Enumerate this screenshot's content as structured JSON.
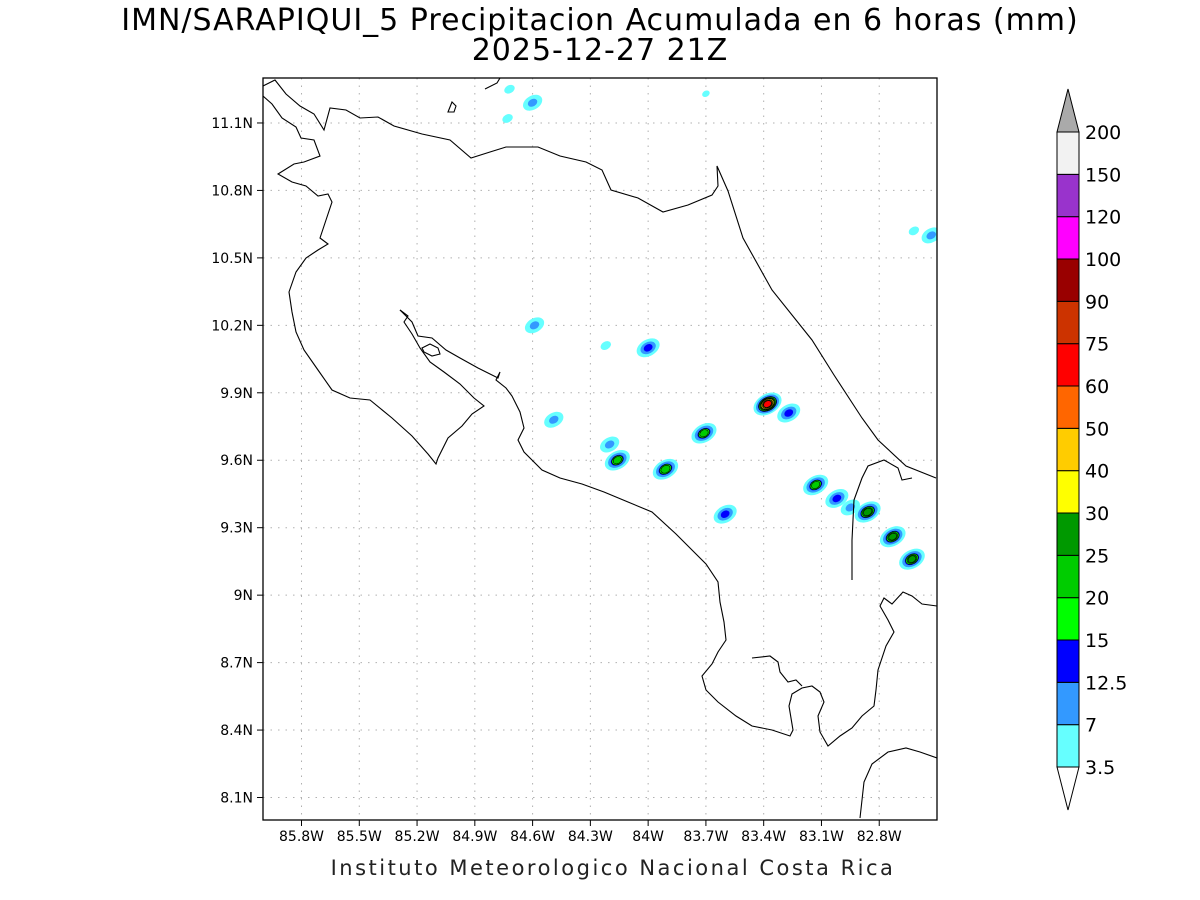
{
  "title": "IMN/SARAPIQUI_5 Precipitacion Acumulada en 6 horas (mm)",
  "subtitle": "2025-12-27 21Z",
  "footer": "Instituto Meteorologico Nacional Costa Rica",
  "map": {
    "lon_range": [
      -86.0,
      -82.5
    ],
    "lat_range": [
      8.0,
      11.3
    ],
    "grid": true,
    "lat_ticks": [
      {
        "value": 11.1,
        "label": "11.1N"
      },
      {
        "value": 10.8,
        "label": "10.8N"
      },
      {
        "value": 10.5,
        "label": "10.5N"
      },
      {
        "value": 10.2,
        "label": "10.2N"
      },
      {
        "value": 9.9,
        "label": "9.9N"
      },
      {
        "value": 9.6,
        "label": "9.6N"
      },
      {
        "value": 9.3,
        "label": "9.3N"
      },
      {
        "value": 9.0,
        "label": "9N"
      },
      {
        "value": 8.7,
        "label": "8.7N"
      },
      {
        "value": 8.4,
        "label": "8.4N"
      },
      {
        "value": 8.1,
        "label": "8.1N"
      }
    ],
    "lon_ticks": [
      {
        "value": -85.8,
        "label": "85.8W"
      },
      {
        "value": -85.5,
        "label": "85.5W"
      },
      {
        "value": -85.2,
        "label": "85.2W"
      },
      {
        "value": -84.9,
        "label": "84.9W"
      },
      {
        "value": -84.6,
        "label": "84.6W"
      },
      {
        "value": -84.3,
        "label": "84.3W"
      },
      {
        "value": -84.0,
        "label": "84W"
      },
      {
        "value": -83.7,
        "label": "83.7W"
      },
      {
        "value": -83.4,
        "label": "83.4W"
      },
      {
        "value": -83.1,
        "label": "83.1W"
      },
      {
        "value": -82.8,
        "label": "82.8W"
      }
    ]
  },
  "legend": {
    "levels": [
      "3.5",
      "7",
      "12.5",
      "15",
      "20",
      "25",
      "30",
      "40",
      "50",
      "60",
      "75",
      "90",
      "100",
      "120",
      "150",
      "200"
    ],
    "colors": [
      "#66ffff",
      "#3399ff",
      "#0000ff",
      "#00ff00",
      "#00cc00",
      "#009900",
      "#ffff00",
      "#ffcc00",
      "#ff6600",
      "#ff0000",
      "#cc3300",
      "#990000",
      "#ff00ff",
      "#9933cc",
      "#f2f2f2"
    ],
    "below_color": "#ffffff",
    "above_color": "#aaaaaa"
  },
  "precip_cells": [
    {
      "lon": -84.72,
      "lat": 11.25,
      "max_mm": 4
    },
    {
      "lon": -84.6,
      "lat": 11.19,
      "max_mm": 8
    },
    {
      "lon": -84.73,
      "lat": 11.12,
      "max_mm": 4
    },
    {
      "lon": -83.7,
      "lat": 11.23,
      "max_mm": 3.5
    },
    {
      "lon": -84.59,
      "lat": 10.2,
      "max_mm": 8
    },
    {
      "lon": -84.22,
      "lat": 10.11,
      "max_mm": 4
    },
    {
      "lon": -84.0,
      "lat": 10.1,
      "max_mm": 14
    },
    {
      "lon": -83.38,
      "lat": 9.85,
      "max_mm": 62
    },
    {
      "lon": -83.27,
      "lat": 9.81,
      "max_mm": 14
    },
    {
      "lon": -84.49,
      "lat": 9.78,
      "max_mm": 8
    },
    {
      "lon": -83.71,
      "lat": 9.72,
      "max_mm": 22
    },
    {
      "lon": -84.2,
      "lat": 9.67,
      "max_mm": 8
    },
    {
      "lon": -84.16,
      "lat": 9.6,
      "max_mm": 22
    },
    {
      "lon": -83.91,
      "lat": 9.56,
      "max_mm": 24
    },
    {
      "lon": -83.13,
      "lat": 9.49,
      "max_mm": 22
    },
    {
      "lon": -83.02,
      "lat": 9.43,
      "max_mm": 14
    },
    {
      "lon": -82.95,
      "lat": 9.39,
      "max_mm": 8
    },
    {
      "lon": -82.86,
      "lat": 9.37,
      "max_mm": 28
    },
    {
      "lon": -83.6,
      "lat": 9.36,
      "max_mm": 14
    },
    {
      "lon": -82.73,
      "lat": 9.26,
      "max_mm": 26
    },
    {
      "lon": -82.63,
      "lat": 9.16,
      "max_mm": 26
    },
    {
      "lon": -82.53,
      "lat": 10.6,
      "max_mm": 8
    },
    {
      "lon": -82.62,
      "lat": 10.62,
      "max_mm": 4
    }
  ]
}
